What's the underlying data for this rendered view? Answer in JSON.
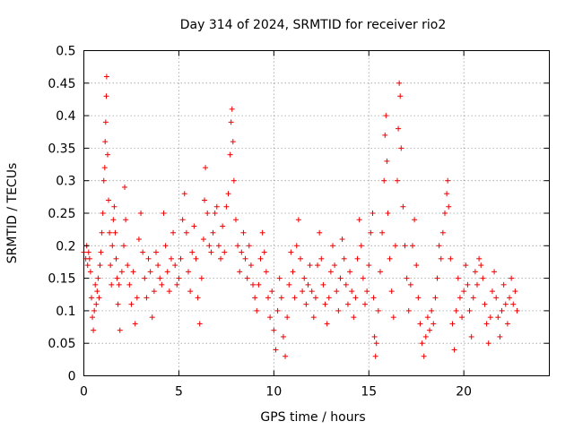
{
  "chart_data": {
    "type": "scatter",
    "title": "Day 314 of 2024, SRMTID for receiver rio2",
    "xlabel": "GPS time / hours",
    "ylabel": "SRMTID / TECUs",
    "xlim": [
      0,
      24.5
    ],
    "ylim": [
      0,
      0.5
    ],
    "x_ticks": [
      0,
      5,
      10,
      15,
      20
    ],
    "y_ticks": [
      0,
      0.05,
      0.1,
      0.15,
      0.2,
      0.25,
      0.3,
      0.35,
      0.4,
      0.45,
      0.5
    ],
    "x_tick_labels": [
      "0",
      "5",
      "10",
      "15",
      "20"
    ],
    "y_tick_labels": [
      "0",
      "0.05",
      "0.1",
      "0.15",
      "0.2",
      "0.25",
      "0.3",
      "0.35",
      "0.4",
      "0.45",
      "0.5"
    ],
    "grid": true,
    "marker": "plus",
    "color": "#ee0000",
    "series": [
      {
        "points": [
          [
            0.0,
            0.19
          ],
          [
            0.1,
            0.18
          ],
          [
            0.15,
            0.2
          ],
          [
            0.2,
            0.17
          ],
          [
            0.25,
            0.19
          ],
          [
            0.3,
            0.18
          ],
          [
            0.35,
            0.16
          ],
          [
            0.4,
            0.12
          ],
          [
            0.45,
            0.09
          ],
          [
            0.5,
            0.07
          ],
          [
            0.55,
            0.1
          ],
          [
            0.6,
            0.14
          ],
          [
            0.65,
            0.11
          ],
          [
            0.7,
            0.13
          ],
          [
            0.75,
            0.15
          ],
          [
            0.8,
            0.12
          ],
          [
            0.85,
            0.17
          ],
          [
            0.9,
            0.19
          ],
          [
            0.95,
            0.22
          ],
          [
            1.0,
            0.25
          ],
          [
            1.05,
            0.3
          ],
          [
            1.1,
            0.32
          ],
          [
            1.12,
            0.36
          ],
          [
            1.15,
            0.39
          ],
          [
            1.18,
            0.43
          ],
          [
            1.2,
            0.46
          ],
          [
            1.25,
            0.34
          ],
          [
            1.3,
            0.27
          ],
          [
            1.35,
            0.22
          ],
          [
            1.4,
            0.17
          ],
          [
            1.45,
            0.14
          ],
          [
            1.5,
            0.2
          ],
          [
            1.55,
            0.24
          ],
          [
            1.6,
            0.26
          ],
          [
            1.65,
            0.22
          ],
          [
            1.7,
            0.18
          ],
          [
            1.75,
            0.15
          ],
          [
            1.8,
            0.11
          ],
          [
            1.85,
            0.14
          ],
          [
            1.9,
            0.07
          ],
          [
            2.0,
            0.16
          ],
          [
            2.1,
            0.2
          ],
          [
            2.15,
            0.29
          ],
          [
            2.2,
            0.24
          ],
          [
            2.3,
            0.17
          ],
          [
            2.4,
            0.14
          ],
          [
            2.5,
            0.11
          ],
          [
            2.6,
            0.16
          ],
          [
            2.7,
            0.08
          ],
          [
            2.8,
            0.12
          ],
          [
            2.9,
            0.21
          ],
          [
            3.0,
            0.25
          ],
          [
            3.1,
            0.19
          ],
          [
            3.2,
            0.15
          ],
          [
            3.3,
            0.12
          ],
          [
            3.4,
            0.18
          ],
          [
            3.5,
            0.16
          ],
          [
            3.6,
            0.09
          ],
          [
            3.7,
            0.13
          ],
          [
            3.8,
            0.19
          ],
          [
            3.9,
            0.17
          ],
          [
            4.0,
            0.15
          ],
          [
            4.1,
            0.14
          ],
          [
            4.2,
            0.25
          ],
          [
            4.3,
            0.2
          ],
          [
            4.4,
            0.16
          ],
          [
            4.5,
            0.13
          ],
          [
            4.6,
            0.18
          ],
          [
            4.7,
            0.22
          ],
          [
            4.8,
            0.17
          ],
          [
            4.9,
            0.14
          ],
          [
            5.0,
            0.15
          ],
          [
            5.1,
            0.18
          ],
          [
            5.2,
            0.24
          ],
          [
            5.3,
            0.28
          ],
          [
            5.4,
            0.22
          ],
          [
            5.5,
            0.16
          ],
          [
            5.6,
            0.13
          ],
          [
            5.7,
            0.19
          ],
          [
            5.8,
            0.23
          ],
          [
            5.9,
            0.18
          ],
          [
            6.0,
            0.12
          ],
          [
            6.1,
            0.08
          ],
          [
            6.2,
            0.15
          ],
          [
            6.3,
            0.21
          ],
          [
            6.35,
            0.27
          ],
          [
            6.4,
            0.32
          ],
          [
            6.5,
            0.25
          ],
          [
            6.6,
            0.2
          ],
          [
            6.7,
            0.19
          ],
          [
            6.8,
            0.22
          ],
          [
            6.9,
            0.25
          ],
          [
            7.0,
            0.26
          ],
          [
            7.1,
            0.2
          ],
          [
            7.2,
            0.18
          ],
          [
            7.3,
            0.23
          ],
          [
            7.4,
            0.19
          ],
          [
            7.5,
            0.26
          ],
          [
            7.6,
            0.28
          ],
          [
            7.7,
            0.34
          ],
          [
            7.75,
            0.39
          ],
          [
            7.8,
            0.41
          ],
          [
            7.85,
            0.36
          ],
          [
            7.9,
            0.3
          ],
          [
            8.0,
            0.24
          ],
          [
            8.1,
            0.2
          ],
          [
            8.2,
            0.16
          ],
          [
            8.3,
            0.19
          ],
          [
            8.4,
            0.22
          ],
          [
            8.5,
            0.18
          ],
          [
            8.6,
            0.15
          ],
          [
            8.7,
            0.2
          ],
          [
            8.8,
            0.17
          ],
          [
            8.9,
            0.14
          ],
          [
            9.0,
            0.12
          ],
          [
            9.1,
            0.1
          ],
          [
            9.2,
            0.14
          ],
          [
            9.3,
            0.18
          ],
          [
            9.4,
            0.22
          ],
          [
            9.5,
            0.19
          ],
          [
            9.6,
            0.16
          ],
          [
            9.7,
            0.12
          ],
          [
            9.8,
            0.09
          ],
          [
            9.9,
            0.13
          ],
          [
            10.0,
            0.07
          ],
          [
            10.1,
            0.04
          ],
          [
            10.2,
            0.1
          ],
          [
            10.3,
            0.15
          ],
          [
            10.4,
            0.12
          ],
          [
            10.5,
            0.06
          ],
          [
            10.6,
            0.03
          ],
          [
            10.7,
            0.09
          ],
          [
            10.8,
            0.14
          ],
          [
            10.9,
            0.19
          ],
          [
            11.0,
            0.16
          ],
          [
            11.1,
            0.12
          ],
          [
            11.2,
            0.2
          ],
          [
            11.3,
            0.24
          ],
          [
            11.4,
            0.18
          ],
          [
            11.5,
            0.13
          ],
          [
            11.6,
            0.15
          ],
          [
            11.7,
            0.11
          ],
          [
            11.8,
            0.14
          ],
          [
            11.9,
            0.17
          ],
          [
            12.0,
            0.13
          ],
          [
            12.1,
            0.09
          ],
          [
            12.2,
            0.12
          ],
          [
            12.3,
            0.17
          ],
          [
            12.4,
            0.22
          ],
          [
            12.5,
            0.18
          ],
          [
            12.6,
            0.14
          ],
          [
            12.7,
            0.11
          ],
          [
            12.8,
            0.08
          ],
          [
            12.9,
            0.12
          ],
          [
            13.0,
            0.16
          ],
          [
            13.1,
            0.2
          ],
          [
            13.2,
            0.17
          ],
          [
            13.3,
            0.13
          ],
          [
            13.4,
            0.1
          ],
          [
            13.5,
            0.15
          ],
          [
            13.6,
            0.21
          ],
          [
            13.7,
            0.18
          ],
          [
            13.8,
            0.14
          ],
          [
            13.9,
            0.11
          ],
          [
            14.0,
            0.16
          ],
          [
            14.1,
            0.13
          ],
          [
            14.2,
            0.09
          ],
          [
            14.3,
            0.12
          ],
          [
            14.4,
            0.18
          ],
          [
            14.5,
            0.24
          ],
          [
            14.6,
            0.2
          ],
          [
            14.7,
            0.15
          ],
          [
            14.8,
            0.11
          ],
          [
            14.9,
            0.13
          ],
          [
            15.0,
            0.17
          ],
          [
            15.1,
            0.22
          ],
          [
            15.2,
            0.25
          ],
          [
            15.25,
            0.12
          ],
          [
            15.3,
            0.06
          ],
          [
            15.35,
            0.03
          ],
          [
            15.4,
            0.05
          ],
          [
            15.5,
            0.1
          ],
          [
            15.6,
            0.16
          ],
          [
            15.7,
            0.22
          ],
          [
            15.8,
            0.3
          ],
          [
            15.85,
            0.37
          ],
          [
            15.9,
            0.4
          ],
          [
            15.95,
            0.33
          ],
          [
            16.0,
            0.25
          ],
          [
            16.1,
            0.18
          ],
          [
            16.2,
            0.13
          ],
          [
            16.3,
            0.09
          ],
          [
            16.4,
            0.2
          ],
          [
            16.5,
            0.3
          ],
          [
            16.55,
            0.38
          ],
          [
            16.6,
            0.45
          ],
          [
            16.65,
            0.43
          ],
          [
            16.7,
            0.35
          ],
          [
            16.8,
            0.26
          ],
          [
            16.9,
            0.2
          ],
          [
            17.0,
            0.15
          ],
          [
            17.1,
            0.1
          ],
          [
            17.2,
            0.14
          ],
          [
            17.3,
            0.2
          ],
          [
            17.4,
            0.24
          ],
          [
            17.5,
            0.17
          ],
          [
            17.6,
            0.12
          ],
          [
            17.7,
            0.08
          ],
          [
            17.8,
            0.05
          ],
          [
            17.9,
            0.03
          ],
          [
            18.0,
            0.06
          ],
          [
            18.1,
            0.09
          ],
          [
            18.2,
            0.07
          ],
          [
            18.3,
            0.1
          ],
          [
            18.4,
            0.08
          ],
          [
            18.5,
            0.12
          ],
          [
            18.6,
            0.15
          ],
          [
            18.7,
            0.2
          ],
          [
            18.8,
            0.18
          ],
          [
            18.9,
            0.22
          ],
          [
            19.0,
            0.25
          ],
          [
            19.1,
            0.28
          ],
          [
            19.15,
            0.3
          ],
          [
            19.2,
            0.26
          ],
          [
            19.3,
            0.18
          ],
          [
            19.4,
            0.08
          ],
          [
            19.5,
            0.04
          ],
          [
            19.6,
            0.1
          ],
          [
            19.7,
            0.15
          ],
          [
            19.8,
            0.12
          ],
          [
            19.9,
            0.09
          ],
          [
            20.0,
            0.13
          ],
          [
            20.1,
            0.17
          ],
          [
            20.2,
            0.14
          ],
          [
            20.3,
            0.1
          ],
          [
            20.4,
            0.06
          ],
          [
            20.5,
            0.12
          ],
          [
            20.6,
            0.16
          ],
          [
            20.7,
            0.14
          ],
          [
            20.8,
            0.18
          ],
          [
            20.9,
            0.17
          ],
          [
            21.0,
            0.15
          ],
          [
            21.1,
            0.11
          ],
          [
            21.2,
            0.08
          ],
          [
            21.3,
            0.05
          ],
          [
            21.4,
            0.09
          ],
          [
            21.5,
            0.13
          ],
          [
            21.6,
            0.16
          ],
          [
            21.7,
            0.12
          ],
          [
            21.8,
            0.09
          ],
          [
            21.9,
            0.06
          ],
          [
            22.0,
            0.1
          ],
          [
            22.1,
            0.14
          ],
          [
            22.2,
            0.11
          ],
          [
            22.3,
            0.08
          ],
          [
            22.4,
            0.12
          ],
          [
            22.5,
            0.15
          ],
          [
            22.6,
            0.11
          ],
          [
            22.7,
            0.13
          ],
          [
            22.8,
            0.1
          ]
        ]
      }
    ]
  }
}
